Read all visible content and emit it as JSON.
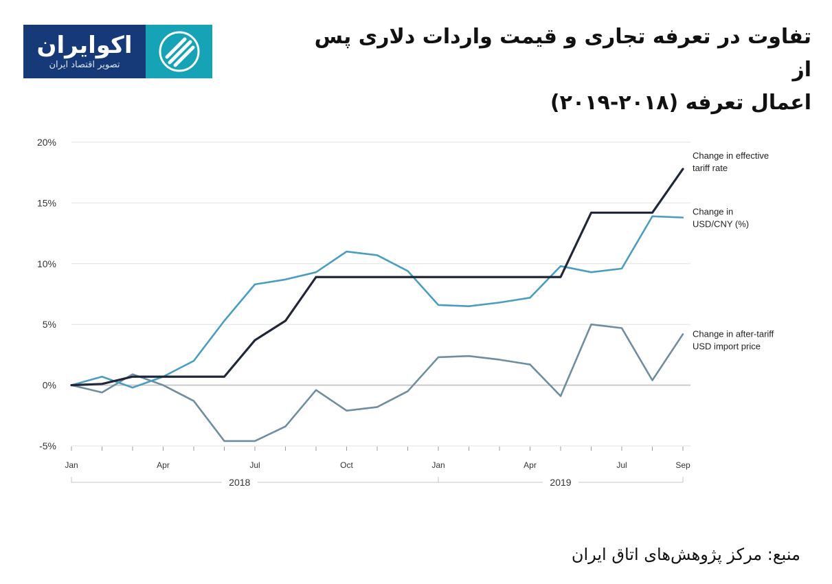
{
  "logo": {
    "name": "اکوایران",
    "tagline": "تصویر اقتصاد ایران"
  },
  "title_line1": "تفاوت در تعرفه تجاری و قیمت واردات دلاری پس از",
  "title_line2": "اعمال تعرفه (۲۰۱۸-۲۰۱۹)",
  "source": "منبع: مرکز پژوهش‌های اتاق ایران",
  "colors": {
    "logo_dark": "#163a78",
    "logo_teal": "#16a3b6"
  },
  "chart_data": {
    "type": "line",
    "x": [
      "Jan 2018",
      "Feb 2018",
      "Mar 2018",
      "Apr 2018",
      "May 2018",
      "Jun 2018",
      "Jul 2018",
      "Aug 2018",
      "Sep 2018",
      "Oct 2018",
      "Nov 2018",
      "Dec 2018",
      "Jan 2019",
      "Feb 2019",
      "Mar 2019",
      "Apr 2019",
      "May 2019",
      "Jun 2019",
      "Jul 2019",
      "Aug 2019",
      "Sep 2019"
    ],
    "x_tick_labels": [
      {
        "index": 0,
        "label": "Jan"
      },
      {
        "index": 3,
        "label": "Apr"
      },
      {
        "index": 6,
        "label": "Jul"
      },
      {
        "index": 9,
        "label": "Oct"
      },
      {
        "index": 12,
        "label": "Jan"
      },
      {
        "index": 15,
        "label": "Apr"
      },
      {
        "index": 18,
        "label": "Jul"
      },
      {
        "index": 20,
        "label": "Sep"
      }
    ],
    "years": [
      {
        "label": "2018",
        "from": 0,
        "to": 11
      },
      {
        "label": "2019",
        "from": 12,
        "to": 20
      }
    ],
    "y_ticks": [
      "20%",
      "15%",
      "10%",
      "5%",
      "0%",
      "-5%"
    ],
    "y_tick_values": [
      20,
      15,
      10,
      5,
      0,
      -5
    ],
    "ylim": [
      -5,
      20
    ],
    "grid": true,
    "legend": "right-inline",
    "series": [
      {
        "name": "Change in effective tariff rate",
        "label_lines": [
          "Change in effective",
          "tariff rate"
        ],
        "color": "#1f2739",
        "values": [
          0,
          0.1,
          0.7,
          0.7,
          0.7,
          0.7,
          3.7,
          5.3,
          8.9,
          8.9,
          8.9,
          8.9,
          8.9,
          8.9,
          8.9,
          8.9,
          8.9,
          14.2,
          14.2,
          14.2,
          17.8
        ]
      },
      {
        "name": "Change in USD/CNY (%)",
        "label_lines": [
          "Change in",
          "USD/CNY (%)"
        ],
        "color": "#4b9dc0",
        "values": [
          0,
          0.7,
          -0.2,
          0.7,
          2.0,
          5.3,
          8.3,
          8.7,
          9.3,
          11.0,
          10.7,
          9.4,
          6.6,
          6.5,
          6.8,
          7.2,
          9.8,
          9.3,
          9.6,
          13.9,
          13.8
        ]
      },
      {
        "name": "Change in after-tariff USD import price",
        "label_lines": [
          "Change in after-tariff",
          "USD import price"
        ],
        "color": "#6e8d9e",
        "values": [
          0,
          -0.6,
          0.9,
          0,
          -1.3,
          -4.6,
          -4.6,
          -3.4,
          -0.4,
          -2.1,
          -1.8,
          -0.5,
          2.3,
          2.4,
          2.1,
          1.7,
          -0.9,
          5.0,
          4.7,
          0.4,
          4.2
        ]
      }
    ]
  }
}
